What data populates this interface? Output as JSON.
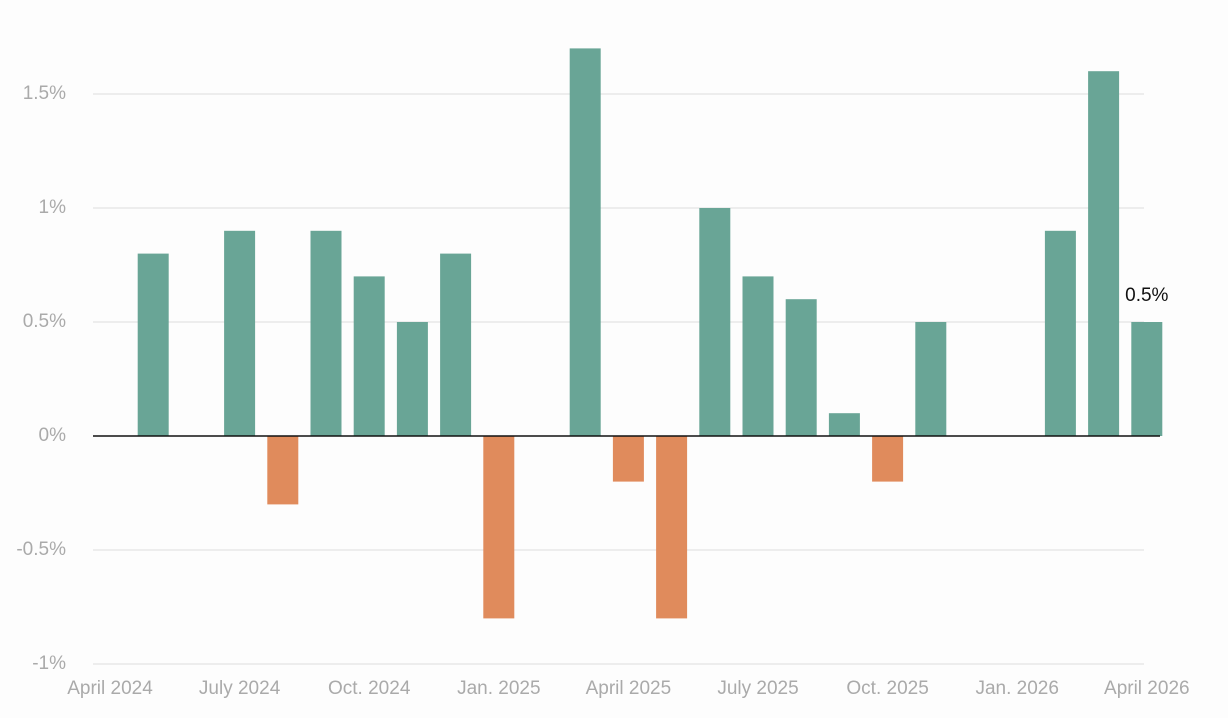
{
  "chart_data": {
    "type": "bar",
    "categories": [
      "April 2024",
      null,
      null,
      "July 2024",
      null,
      null,
      "Oct. 2024",
      null,
      null,
      "Jan. 2025",
      null,
      null,
      "April 2025",
      null,
      null,
      "July 2025",
      null,
      null,
      "Oct. 2025",
      null,
      null,
      "Jan. 2026",
      null,
      null,
      "April 2026"
    ],
    "values": [
      null,
      0.8,
      null,
      0.9,
      -0.3,
      0.9,
      0.7,
      0.5,
      0.8,
      -0.8,
      null,
      1.7,
      -0.2,
      -0.8,
      1.0,
      0.7,
      0.6,
      0.1,
      -0.2,
      0.5,
      null,
      null,
      0.9,
      1.6,
      0.5
    ],
    "value_labels": [
      null,
      null,
      null,
      null,
      null,
      null,
      null,
      null,
      null,
      null,
      null,
      null,
      null,
      null,
      null,
      null,
      null,
      null,
      null,
      null,
      null,
      null,
      null,
      null,
      "0.5%"
    ],
    "positive_color": "#69a596",
    "negative_color": "#e08b5c",
    "ylim": [
      -1,
      1.75
    ],
    "yticks": [
      {
        "value": -1,
        "label": "-1%"
      },
      {
        "value": -0.5,
        "label": "-0.5%"
      },
      {
        "value": 0,
        "label": "0%"
      },
      {
        "value": 0.5,
        "label": "0.5%"
      },
      {
        "value": 1,
        "label": "1%"
      },
      {
        "value": 1.5,
        "label": "1.5%"
      }
    ],
    "grid": true
  }
}
